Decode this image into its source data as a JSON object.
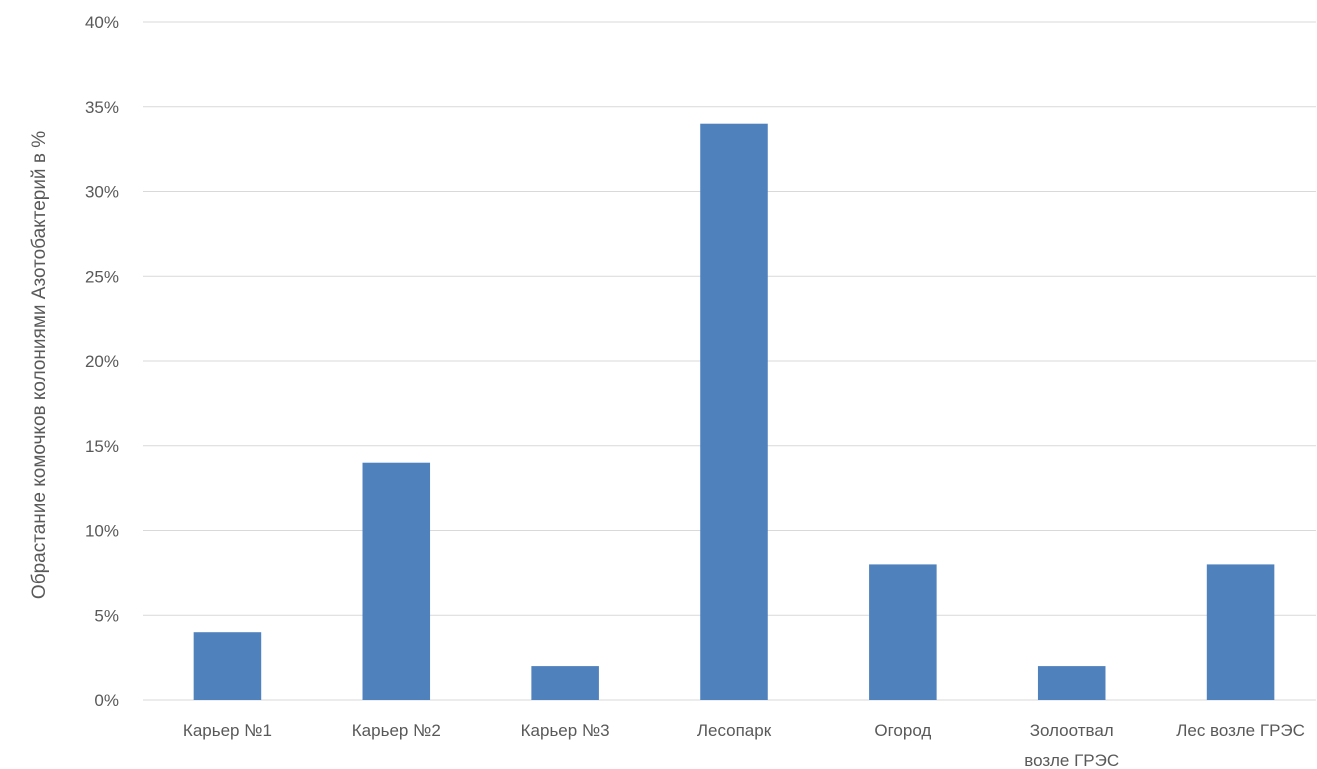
{
  "chart_data": {
    "type": "bar",
    "title": "",
    "xlabel": "",
    "ylabel": "Обрастание комочков колониями Азотобактерий в %",
    "categories": [
      [
        "Карьер №1"
      ],
      [
        "Карьер №2"
      ],
      [
        "Карьер №3"
      ],
      [
        "Лесопарк"
      ],
      [
        "Огород"
      ],
      [
        "Золоотвал",
        "возле ГРЭС"
      ],
      [
        "Лес возле ГРЭС"
      ]
    ],
    "series": [
      {
        "values": [
          4,
          14,
          2,
          34,
          8,
          2,
          8
        ]
      }
    ],
    "ylim": [
      0,
      40
    ],
    "yticks": [
      0,
      5,
      10,
      15,
      20,
      25,
      30,
      35,
      40
    ],
    "ytick_labels": [
      "0%",
      "5%",
      "10%",
      "15%",
      "20%",
      "25%",
      "30%",
      "35%",
      "40%"
    ],
    "bar_color": "#4f81bd",
    "grid": true,
    "legend": "none"
  }
}
